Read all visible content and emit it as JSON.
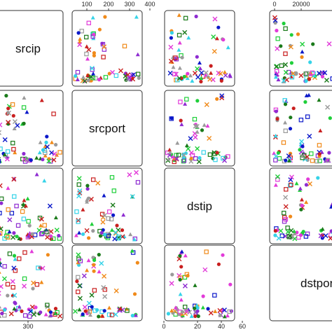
{
  "chart_data": {
    "type": "scatter",
    "subtype": "scatterplot-matrix",
    "variables": [
      "srcip",
      "srcport",
      "dstip",
      "dstport"
    ],
    "ticks": {
      "srcport": [
        "100",
        "200",
        "300",
        "400"
      ],
      "dstport": [
        "0",
        "20000"
      ],
      "dstip": [
        "0",
        "20",
        "40",
        "60"
      ],
      "srcip": [
        "300"
      ]
    },
    "ranges": {
      "srcip": [
        0,
        360
      ],
      "srcport": [
        60,
        460
      ],
      "dstip": [
        -5,
        75
      ],
      "dstport": [
        -2000,
        55000
      ]
    },
    "series_colors": [
      "#0b18c9",
      "#1fcf3a",
      "#e23bd9",
      "#35d3e8",
      "#9a9a9a",
      "#1a7a1a",
      "#f08a1a",
      "#8e2bd1",
      "#c91f1f"
    ],
    "grid": false,
    "legend": "none"
  }
}
